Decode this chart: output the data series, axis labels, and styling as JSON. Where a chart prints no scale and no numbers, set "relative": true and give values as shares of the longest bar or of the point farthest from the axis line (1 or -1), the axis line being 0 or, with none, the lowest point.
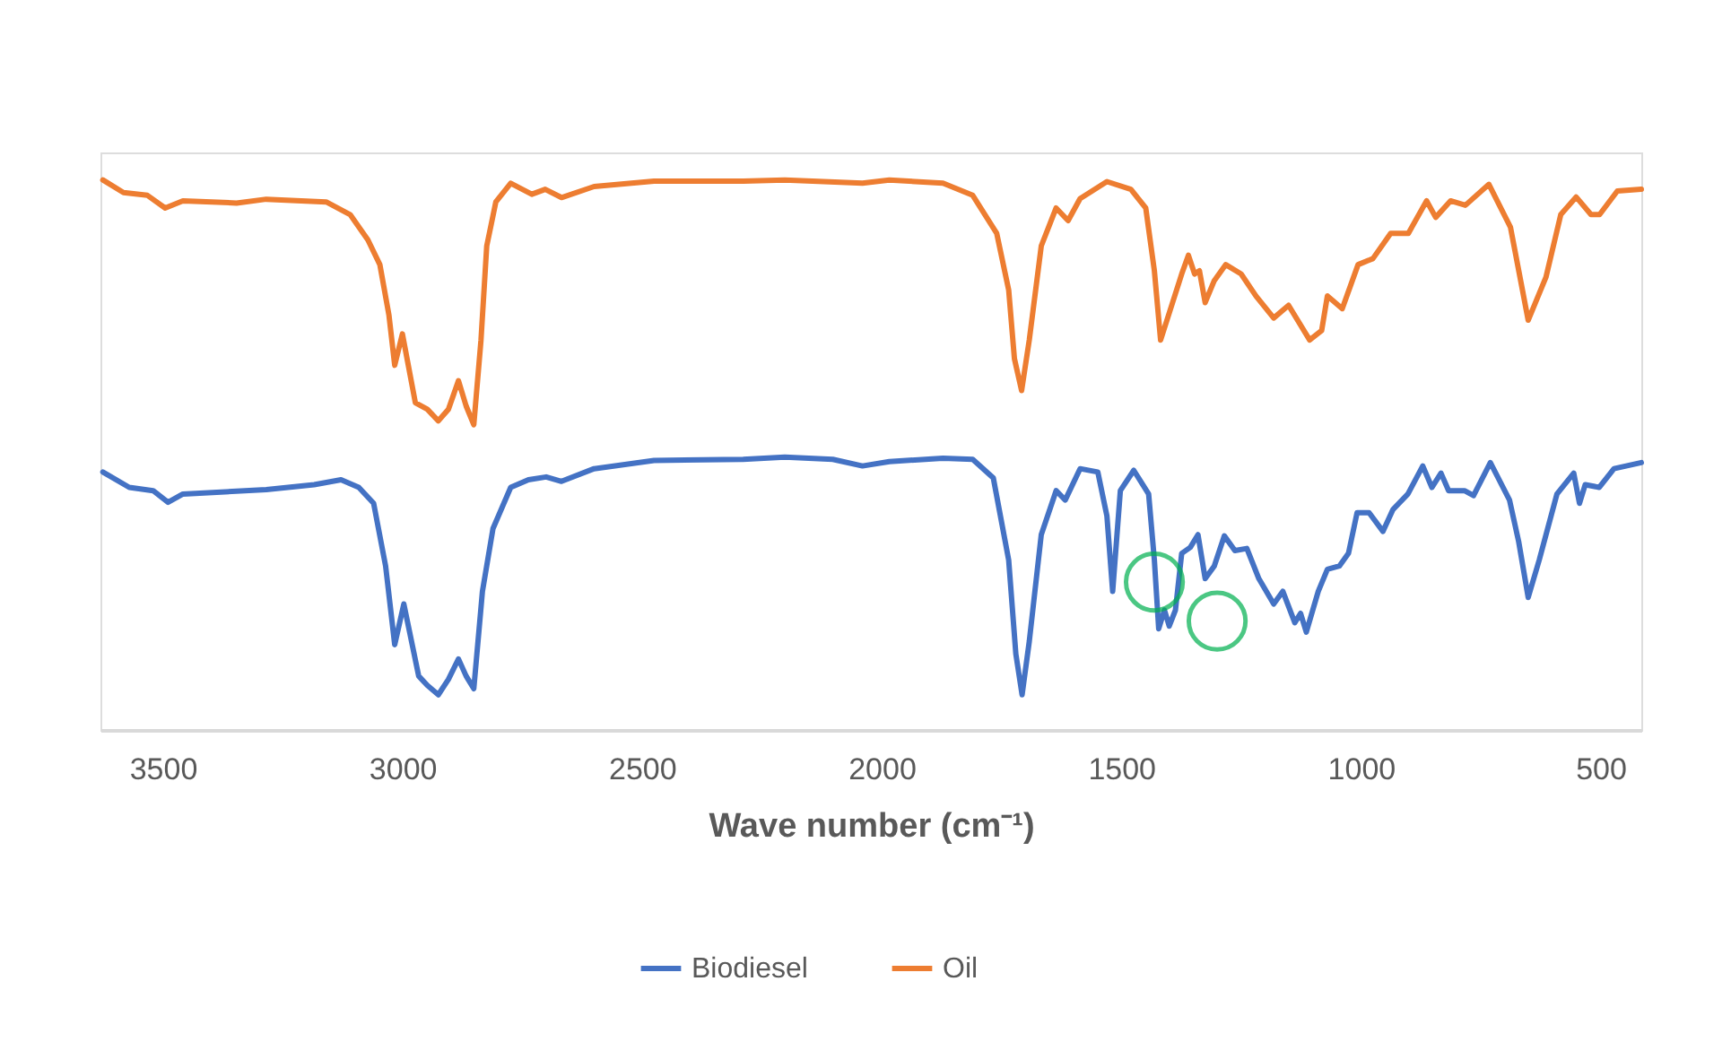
{
  "chart_data": {
    "type": "line",
    "xlabel": "Wave number (cm⁻¹)",
    "relative": true,
    "xlim": [
      3630,
      415
    ],
    "xticks": [
      3500,
      3000,
      2500,
      2000,
      1500,
      1000,
      500
    ],
    "grid": false,
    "legend": "bottom",
    "line_style": "solid",
    "series": [
      {
        "name": "Biodiesel",
        "color": "#4472c4",
        "x": [
          3625,
          3570,
          3520,
          3489,
          3458,
          3284,
          3184,
          3128,
          3091,
          3060,
          3035,
          3016,
          2997,
          2966,
          2948,
          2925,
          2904,
          2883,
          2867,
          2851,
          2833,
          2811,
          2774,
          2737,
          2700,
          2668,
          2600,
          2475,
          2289,
          2202,
          2102,
          2040,
          1984,
          1872,
          1810,
          1767,
          1735,
          1720,
          1707,
          1692,
          1667,
          1636,
          1617,
          1586,
          1549,
          1530,
          1518,
          1502,
          1474,
          1443,
          1431,
          1422,
          1410,
          1400,
          1387,
          1374,
          1356,
          1340,
          1325,
          1306,
          1285,
          1263,
          1238,
          1213,
          1182,
          1163,
          1138,
          1126,
          1114,
          1089,
          1070,
          1045,
          1026,
          1008,
          983,
          954,
          933,
          902,
          871,
          852,
          833,
          817,
          784,
          765,
          730,
          690,
          671,
          651,
          628,
          591,
          556,
          544,
          532,
          503,
          472,
          415
        ],
        "values": [
          0.469,
          0.441,
          0.435,
          0.414,
          0.429,
          0.437,
          0.446,
          0.455,
          0.441,
          0.412,
          0.298,
          0.155,
          0.229,
          0.098,
          0.081,
          0.064,
          0.092,
          0.129,
          0.098,
          0.075,
          0.252,
          0.366,
          0.441,
          0.455,
          0.46,
          0.452,
          0.475,
          0.49,
          0.492,
          0.496,
          0.492,
          0.48,
          0.488,
          0.494,
          0.492,
          0.458,
          0.309,
          0.138,
          0.064,
          0.161,
          0.355,
          0.435,
          0.418,
          0.475,
          0.469,
          0.389,
          0.252,
          0.435,
          0.472,
          0.429,
          0.309,
          0.184,
          0.218,
          0.189,
          0.218,
          0.321,
          0.332,
          0.355,
          0.275,
          0.298,
          0.353,
          0.326,
          0.33,
          0.275,
          0.229,
          0.252,
          0.195,
          0.212,
          0.178,
          0.252,
          0.292,
          0.298,
          0.321,
          0.395,
          0.395,
          0.361,
          0.401,
          0.429,
          0.48,
          0.441,
          0.467,
          0.435,
          0.435,
          0.426,
          0.486,
          0.418,
          0.343,
          0.241,
          0.309,
          0.429,
          0.467,
          0.412,
          0.446,
          0.441,
          0.475,
          0.486
        ]
      },
      {
        "name": "Oil",
        "color": "#ed7d31",
        "x": [
          3625,
          3582,
          3532,
          3495,
          3458,
          3346,
          3284,
          3159,
          3109,
          3072,
          3047,
          3028,
          3016,
          3000,
          2973,
          2948,
          2925,
          2904,
          2883,
          2867,
          2851,
          2836,
          2824,
          2805,
          2774,
          2730,
          2702,
          2668,
          2600,
          2475,
          2289,
          2202,
          2040,
          1984,
          1872,
          1810,
          1760,
          1735,
          1723,
          1708,
          1692,
          1667,
          1636,
          1611,
          1586,
          1530,
          1480,
          1449,
          1431,
          1418,
          1393,
          1374,
          1360,
          1347,
          1337,
          1325,
          1306,
          1282,
          1250,
          1219,
          1182,
          1151,
          1107,
          1082,
          1070,
          1039,
          1006,
          975,
          938,
          901,
          863,
          844,
          813,
          782,
          733,
          688,
          651,
          614,
          583,
          551,
          520,
          502,
          465,
          415
        ],
        "values": [
          1.0,
          0.977,
          0.972,
          0.949,
          0.962,
          0.958,
          0.965,
          0.96,
          0.937,
          0.891,
          0.846,
          0.754,
          0.663,
          0.72,
          0.595,
          0.583,
          0.562,
          0.583,
          0.635,
          0.589,
          0.555,
          0.709,
          0.88,
          0.96,
          0.994,
          0.974,
          0.983,
          0.968,
          0.988,
          0.998,
          0.998,
          1.0,
          0.994,
          1.0,
          0.994,
          0.972,
          0.903,
          0.8,
          0.675,
          0.617,
          0.709,
          0.88,
          0.949,
          0.926,
          0.966,
          0.997,
          0.983,
          0.949,
          0.835,
          0.709,
          0.777,
          0.829,
          0.863,
          0.829,
          0.835,
          0.777,
          0.817,
          0.846,
          0.829,
          0.789,
          0.749,
          0.772,
          0.709,
          0.726,
          0.789,
          0.766,
          0.846,
          0.857,
          0.903,
          0.903,
          0.962,
          0.932,
          0.962,
          0.954,
          0.992,
          0.914,
          0.745,
          0.823,
          0.937,
          0.969,
          0.937,
          0.937,
          0.98,
          0.983
        ]
      },
      {
        "type": "scatter",
        "marker": "circle",
        "color": "#00b050",
        "x": [
          1431,
          1300
        ],
        "values": [
          0.269,
          0.198
        ]
      }
    ]
  }
}
